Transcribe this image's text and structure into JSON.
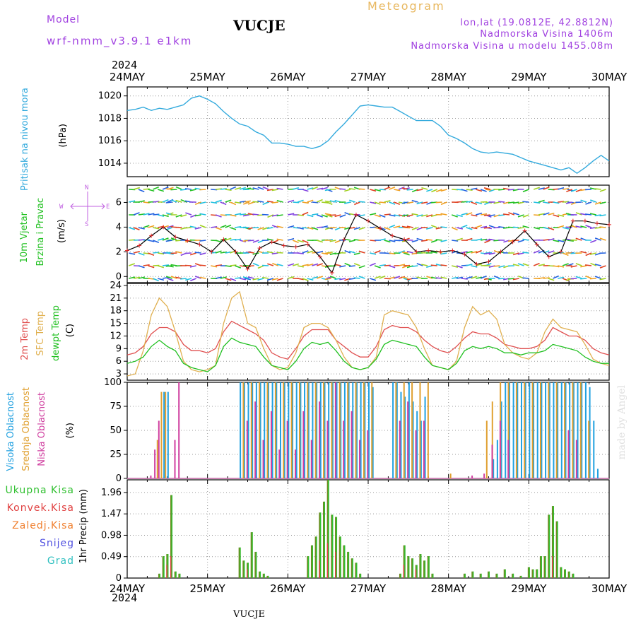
{
  "header": {
    "model_label": "Model",
    "model_name": "wrf-nmm_v3.9.1 e1km",
    "station": "VUCJE",
    "meteogram": "Meteogram",
    "lonlat": "lon,lat (19.0812E, 42.8812N)",
    "elevation": "Nadmorska Visina 1406m",
    "model_elevation": "Nadmorska Visina u modelu 1455.08m",
    "year": "2024",
    "footer_station": "VUCJE",
    "credit": "made by Angel"
  },
  "x_axis": {
    "labels": [
      "24MAY",
      "25MAY",
      "26MAY",
      "27MAY",
      "28MAY",
      "29MAY",
      "30MAY"
    ]
  },
  "panel_labels": {
    "pressure": [
      "Pritisak na nivou mora",
      "(hPa)"
    ],
    "wind": [
      "10m Vjetar",
      "Brzina i Pravac",
      "(m/s)"
    ],
    "wind_compass": [
      "N",
      "S",
      "W",
      "E"
    ],
    "temp": [
      "2m Temp",
      "SFC Temp",
      "dewpt Temp",
      "(C)"
    ],
    "cloud": [
      "Visoka Oblacnost",
      "Srednja Oblacnost",
      "Niska Oblacnost",
      "(%)"
    ],
    "precip": [
      "Ukupna Kisa",
      "Konvek.Kisa",
      "Zaledj.Kisa",
      "Snijeg",
      "Grad",
      "1hr Precip (mm)"
    ]
  },
  "colors": {
    "pressure": "#33aadd",
    "wind_label": "#20c020",
    "temp2m": "#e05050",
    "tsfc": "#e0b050",
    "tdew": "#20c020",
    "high_cloud": "#20a0e0",
    "mid_cloud": "#e0a030",
    "low_cloud": "#d040a0",
    "total_precip": "#30c030",
    "conv_precip": "#e04040",
    "frozen": "#f08030",
    "snow": "#5050e0",
    "hail": "#30c0c0",
    "olive": "#708a20"
  },
  "chart_data": [
    {
      "type": "line",
      "name": "pressure",
      "x_days": [
        0,
        0.1,
        0.2,
        0.3,
        0.4,
        0.5,
        0.6,
        0.7,
        0.8,
        0.9,
        1.0,
        1.1,
        1.2,
        1.3,
        1.4,
        1.5,
        1.6,
        1.7,
        1.8,
        1.9,
        2.0,
        2.1,
        2.2,
        2.3,
        2.4,
        2.5,
        2.6,
        2.7,
        2.8,
        2.9,
        3.0,
        3.1,
        3.2,
        3.3,
        3.4,
        3.5,
        3.6,
        3.7,
        3.8,
        3.9,
        4.0,
        4.1,
        4.2,
        4.3,
        4.4,
        4.5,
        4.6,
        4.7,
        4.8,
        4.9,
        5.0,
        5.1,
        5.2,
        5.3,
        5.4,
        5.5,
        5.6,
        5.7,
        5.8,
        5.9,
        6.0
      ],
      "values": [
        1018.7,
        1018.8,
        1019.0,
        1018.7,
        1018.9,
        1018.8,
        1019.0,
        1019.2,
        1019.8,
        1020.0,
        1019.7,
        1019.3,
        1018.6,
        1018.0,
        1017.5,
        1017.3,
        1016.8,
        1016.5,
        1015.8,
        1015.8,
        1015.7,
        1015.5,
        1015.5,
        1015.3,
        1015.5,
        1016.0,
        1016.8,
        1017.5,
        1018.3,
        1019.1,
        1019.2,
        1019.1,
        1019.0,
        1019.0,
        1018.6,
        1018.2,
        1017.8,
        1017.8,
        1017.8,
        1017.3,
        1016.5,
        1016.2,
        1015.8,
        1015.3,
        1015.0,
        1014.9,
        1015.0,
        1014.9,
        1014.8,
        1014.5,
        1014.2,
        1014.0,
        1013.8,
        1013.6,
        1013.4,
        1013.6,
        1013.1,
        1013.6,
        1014.2,
        1014.7,
        1014.2
      ],
      "ylim": [
        1012.8,
        1020.8
      ],
      "yticks": [
        1014,
        1016,
        1018,
        1020
      ]
    },
    {
      "type": "line",
      "name": "wind_speed",
      "x_days": [
        0,
        0.15,
        0.3,
        0.45,
        0.6,
        0.75,
        0.9,
        1.05,
        1.2,
        1.35,
        1.5,
        1.65,
        1.8,
        1.95,
        2.1,
        2.25,
        2.4,
        2.55,
        2.7,
        2.85,
        3.0,
        3.15,
        3.3,
        3.45,
        3.6,
        3.75,
        3.9,
        4.05,
        4.2,
        4.35,
        4.5,
        4.65,
        4.8,
        4.95,
        5.1,
        5.25,
        5.4,
        5.55,
        5.7,
        5.85,
        6.0
      ],
      "values": [
        2.1,
        2.5,
        3.3,
        4.0,
        3.2,
        2.9,
        2.6,
        2.0,
        3.0,
        2.0,
        0.6,
        2.3,
        2.8,
        2.5,
        2.4,
        2.6,
        1.6,
        0.3,
        3.0,
        5.0,
        4.5,
        3.9,
        3.3,
        3.0,
        2.0,
        2.1,
        2.0,
        2.1,
        1.8,
        1.0,
        1.2,
        2.0,
        2.8,
        3.7,
        2.6,
        1.6,
        2.0,
        4.5,
        4.5,
        4.3,
        4.2
      ],
      "ylim": [
        -0.5,
        7.4
      ],
      "yticks": [
        0,
        2,
        4,
        6
      ]
    },
    {
      "type": "line",
      "name": "temperature",
      "x_days": [
        0,
        0.1,
        0.2,
        0.3,
        0.4,
        0.5,
        0.6,
        0.7,
        0.8,
        0.9,
        1.0,
        1.1,
        1.2,
        1.3,
        1.4,
        1.5,
        1.6,
        1.7,
        1.8,
        1.9,
        2.0,
        2.1,
        2.2,
        2.3,
        2.4,
        2.5,
        2.6,
        2.7,
        2.8,
        2.9,
        3.0,
        3.1,
        3.2,
        3.3,
        3.4,
        3.5,
        3.6,
        3.7,
        3.8,
        3.9,
        4.0,
        4.1,
        4.2,
        4.3,
        4.4,
        4.5,
        4.6,
        4.7,
        4.8,
        4.9,
        5.0,
        5.1,
        5.2,
        5.3,
        5.4,
        5.5,
        5.6,
        5.7,
        5.8,
        5.9,
        6.0
      ],
      "series": [
        {
          "name": "2m Temp",
          "values": [
            7.5,
            8.0,
            9.5,
            12.5,
            14.0,
            14.0,
            13.0,
            10.0,
            8.5,
            8.5,
            8.0,
            9.0,
            13.0,
            15.5,
            14.5,
            13.5,
            12.5,
            11.0,
            8.0,
            7.0,
            6.5,
            9.0,
            12.0,
            13.5,
            13.5,
            13.5,
            11.0,
            9.5,
            8.0,
            7.0,
            7.0,
            9.5,
            13.5,
            14.5,
            14.0,
            14.0,
            13.0,
            11.0,
            9.5,
            8.5,
            8.0,
            9.5,
            11.5,
            13.0,
            12.5,
            12.5,
            11.5,
            10.0,
            9.5,
            9.0,
            9.0,
            9.5,
            11.0,
            14.0,
            13.0,
            12.0,
            12.0,
            11.0,
            9.0,
            8.0,
            7.5
          ]
        },
        {
          "name": "SFC Temp",
          "values": [
            2.5,
            3.0,
            8.5,
            17.0,
            21.0,
            19.0,
            13.0,
            6.0,
            4.0,
            3.5,
            4.0,
            5.0,
            15.0,
            21.0,
            22.5,
            15.0,
            14.0,
            9.0,
            5.0,
            4.0,
            4.5,
            8.0,
            14.0,
            15.0,
            15.0,
            14.0,
            11.0,
            7.0,
            4.5,
            4.0,
            4.5,
            7.0,
            17.0,
            18.0,
            17.5,
            17.0,
            14.0,
            9.0,
            5.0,
            4.5,
            4.0,
            6.0,
            14.0,
            19.0,
            17.0,
            18.0,
            16.0,
            10.0,
            8.0,
            7.0,
            6.5,
            8.0,
            13.0,
            16.0,
            14.0,
            13.5,
            13.0,
            10.0,
            6.5,
            5.5,
            5.0
          ]
        },
        {
          "name": "dewpt Temp",
          "values": [
            5.5,
            6.0,
            7.0,
            9.5,
            11.0,
            9.5,
            8.5,
            5.5,
            4.5,
            4.0,
            3.5,
            5.0,
            9.5,
            11.5,
            10.5,
            10.0,
            9.5,
            7.0,
            5.0,
            4.5,
            4.0,
            6.0,
            9.0,
            10.5,
            10.0,
            10.5,
            8.5,
            6.0,
            4.5,
            4.0,
            4.5,
            6.5,
            10.0,
            11.0,
            10.5,
            10.0,
            9.5,
            7.0,
            5.0,
            4.5,
            4.0,
            5.5,
            8.5,
            9.5,
            9.0,
            9.5,
            9.0,
            8.0,
            8.0,
            7.5,
            8.0,
            8.0,
            8.5,
            10.0,
            9.5,
            9.0,
            8.5,
            7.0,
            6.0,
            5.5,
            5.5
          ]
        }
      ],
      "ylim": [
        1.5,
        24.5
      ],
      "yticks": [
        3,
        6,
        9,
        12,
        15,
        18,
        21,
        24
      ]
    },
    {
      "type": "bar",
      "name": "cloud_cover",
      "ylim": [
        0,
        100
      ],
      "yticks": [
        0,
        25,
        50,
        75,
        100
      ],
      "series": [
        {
          "name": "Visoka Oblacnost",
          "x_days": [
            0.45,
            0.5,
            1.4,
            1.45,
            1.5,
            1.55,
            1.6,
            1.65,
            1.7,
            1.75,
            1.8,
            1.85,
            1.9,
            1.95,
            2.0,
            2.05,
            2.1,
            2.15,
            2.2,
            2.25,
            2.3,
            2.35,
            2.4,
            2.45,
            2.5,
            2.55,
            2.6,
            2.65,
            2.7,
            2.75,
            2.8,
            2.85,
            2.9,
            2.95,
            3.0,
            3.05,
            3.3,
            3.35,
            3.4,
            3.45,
            3.5,
            3.55,
            3.6,
            3.65,
            3.7,
            4.55,
            4.6,
            4.65,
            4.7,
            4.75,
            4.8,
            4.85,
            4.9,
            4.95,
            5.0,
            5.05,
            5.1,
            5.15,
            5.2,
            5.25,
            5.3,
            5.35,
            5.4,
            5.45,
            5.5,
            5.55,
            5.6,
            5.65,
            5.7,
            5.75,
            5.8,
            5.85
          ],
          "values": [
            90,
            90,
            100,
            100,
            100,
            100,
            100,
            100,
            100,
            100,
            100,
            100,
            100,
            100,
            100,
            100,
            100,
            100,
            100,
            100,
            100,
            100,
            100,
            100,
            100,
            100,
            100,
            100,
            100,
            100,
            100,
            100,
            100,
            100,
            100,
            95,
            100,
            100,
            90,
            85,
            100,
            80,
            70,
            60,
            85,
            20,
            40,
            80,
            100,
            100,
            100,
            100,
            100,
            100,
            100,
            100,
            100,
            100,
            100,
            100,
            100,
            100,
            100,
            100,
            100,
            100,
            100,
            100,
            100,
            95,
            60,
            10
          ]
        },
        {
          "name": "Srednja Oblacnost",
          "x_days": [
            0.35,
            0.4,
            0.45,
            1.42,
            1.52,
            1.62,
            1.72,
            1.82,
            1.92,
            2.02,
            2.12,
            2.22,
            2.32,
            2.42,
            2.52,
            2.62,
            2.72,
            2.82,
            2.92,
            3.02,
            3.32,
            3.42,
            3.52,
            3.62,
            3.72,
            4.0,
            4.45,
            4.52,
            4.62,
            4.72,
            4.82,
            4.92,
            5.02,
            5.12,
            5.22,
            5.32,
            5.42,
            5.52,
            5.62,
            5.72
          ],
          "values": [
            40,
            90,
            90,
            100,
            100,
            100,
            100,
            100,
            100,
            100,
            100,
            100,
            100,
            100,
            100,
            100,
            100,
            100,
            100,
            100,
            100,
            100,
            100,
            100,
            100,
            5,
            60,
            80,
            100,
            100,
            100,
            100,
            100,
            100,
            100,
            100,
            100,
            100,
            100,
            60
          ]
        },
        {
          "name": "Niska Oblacnost",
          "x_days": [
            0.25,
            0.3,
            0.35,
            0.55,
            0.6,
            1.45,
            1.55,
            1.65,
            1.75,
            1.85,
            1.95,
            2.05,
            2.15,
            2.25,
            2.35,
            2.45,
            2.55,
            2.65,
            2.75,
            2.85,
            2.95,
            3.35,
            3.45,
            3.55,
            3.65,
            4.25,
            4.4,
            4.5,
            4.6,
            4.7,
            5.45,
            5.55
          ],
          "values": [
            3,
            30,
            60,
            40,
            100,
            60,
            80,
            40,
            70,
            30,
            60,
            30,
            70,
            40,
            80,
            60,
            100,
            60,
            70,
            40,
            50,
            60,
            80,
            50,
            60,
            3,
            5,
            35,
            60,
            40,
            50,
            40
          ]
        }
      ]
    },
    {
      "type": "bar",
      "name": "precipitation",
      "ylim": [
        0,
        2.25
      ],
      "yticks": [
        0,
        0.49,
        0.98,
        1.47,
        1.96
      ],
      "series": [
        {
          "name": "Ukupna Kisa",
          "x_days": [
            0.4,
            0.45,
            0.5,
            0.55,
            0.6,
            0.65,
            1.4,
            1.45,
            1.5,
            1.55,
            1.6,
            1.65,
            1.7,
            1.75,
            2.25,
            2.3,
            2.35,
            2.4,
            2.45,
            2.5,
            2.55,
            2.6,
            2.65,
            2.7,
            2.75,
            2.8,
            2.85,
            2.9,
            3.4,
            3.45,
            3.5,
            3.55,
            3.6,
            3.65,
            3.7,
            3.75,
            3.8,
            4.2,
            4.3,
            4.4,
            4.5,
            4.6,
            4.7,
            4.8,
            4.9,
            5.0,
            5.05,
            5.1,
            5.15,
            5.2,
            5.25,
            5.3,
            5.35,
            5.4,
            5.45,
            5.5,
            5.55
          ],
          "values": [
            0.1,
            0.5,
            0.55,
            1.9,
            0.15,
            0.1,
            0.7,
            0.4,
            0.35,
            1.05,
            0.6,
            0.15,
            0.1,
            0.05,
            0.5,
            0.75,
            0.95,
            1.5,
            1.75,
            2.25,
            1.45,
            1.4,
            0.95,
            0.75,
            0.6,
            0.45,
            0.35,
            0.1,
            0.1,
            0.75,
            0.5,
            0.45,
            0.3,
            0.55,
            0.4,
            0.5,
            0.1,
            0.1,
            0.15,
            0.1,
            0.15,
            0.1,
            0.2,
            0.1,
            0.05,
            0.25,
            0.2,
            0.2,
            0.5,
            0.5,
            1.45,
            1.65,
            1.3,
            0.25,
            0.2,
            0.15,
            0.1
          ]
        },
        {
          "name": "Konvek.Kisa",
          "x_days": [
            0.5,
            0.55,
            1.5,
            2.4,
            2.5,
            2.6,
            3.45,
            3.6,
            5.3
          ],
          "values": [
            0.3,
            0.5,
            0.2,
            0.4,
            0.8,
            0.6,
            0.3,
            0.2,
            0.5
          ]
        }
      ]
    }
  ]
}
